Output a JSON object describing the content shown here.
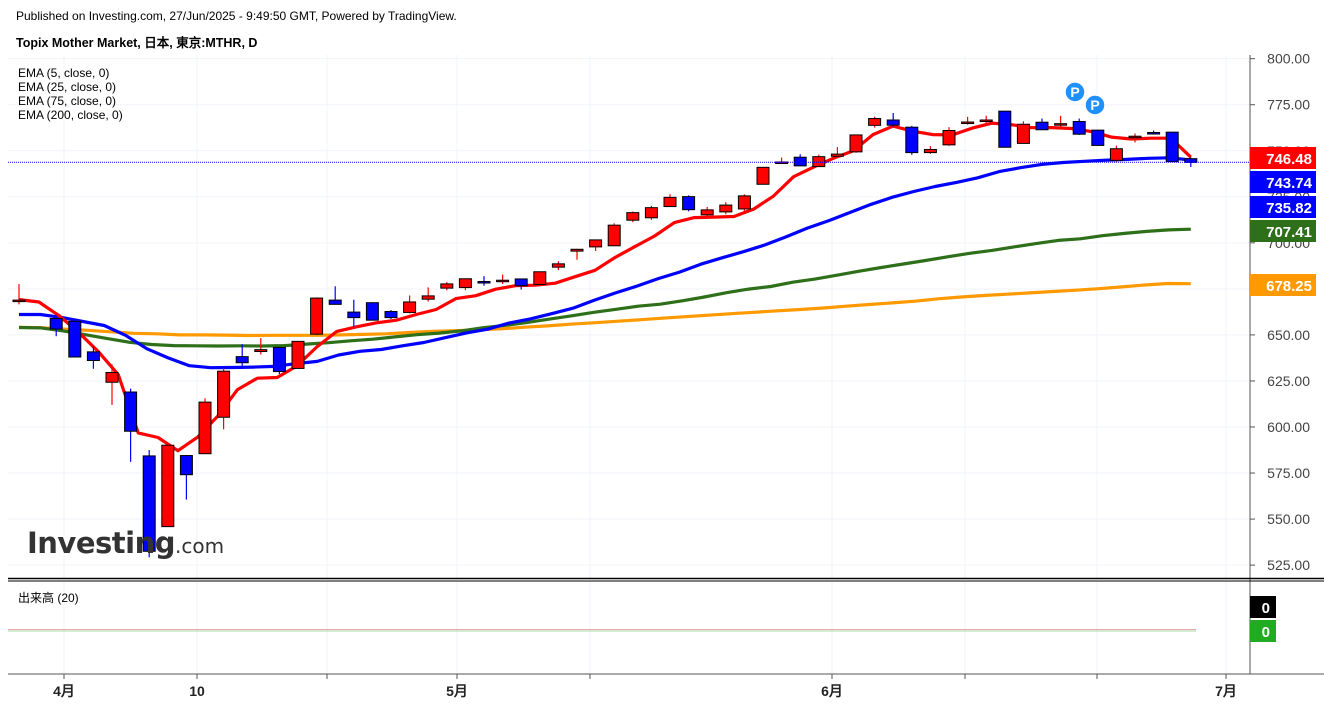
{
  "header": {
    "published": "Published on Investing.com, 27/Jun/2025 - 9:49:50 GMT, Powered by TradingView.",
    "title": "Topix Mother Market, 日本, 東京:MTHR, D"
  },
  "logo": {
    "main": "Investing",
    "suffix": ".com"
  },
  "volume_label": "出来高 (20)",
  "colors": {
    "up": "#ff0000",
    "down": "#0000ff",
    "ema5": "#ff0000",
    "ema25": "#0000ff",
    "ema75": "#2e6f1a",
    "ema200": "#ff9900",
    "price_line": "#0000ff"
  },
  "chart_data": {
    "type": "candlestick",
    "x_tick_labels": [
      "4月",
      "10",
      "5月",
      "6月",
      "7月"
    ],
    "y_ticks": [
      "800.00",
      "775.00",
      "750.00",
      "725.00",
      "700.00",
      "675.00",
      "650.00",
      "625.00",
      "600.00",
      "575.00",
      "550.00",
      "525.00"
    ],
    "ylim": [
      518,
      802
    ],
    "legend": [
      "EMA (5, close, 0)",
      "EMA (25, close, 0)",
      "EMA (75, close, 0)",
      "EMA (200, close, 0)"
    ],
    "price_labels": [
      {
        "text": "746.48",
        "value": 746.48,
        "color": "#ff0000",
        "text_color": "#ffffff"
      },
      {
        "text": "743.74",
        "value": 743.74,
        "color": "#0000ff",
        "text_color": "#ffffff"
      },
      {
        "text": "735.82",
        "value": 735.82,
        "color": "#0000ff",
        "text_color": "#ffffff"
      },
      {
        "text": "707.41",
        "value": 707.41,
        "color": "#2e6f1a",
        "text_color": "#ffffff"
      },
      {
        "text": "678.25",
        "value": 678.25,
        "color": "#ff9900",
        "text_color": "#ffffff"
      }
    ],
    "last_price": 743.74,
    "candles": [
      {
        "d": 0,
        "o": 668.9,
        "h": 677.6,
        "l": 666.6,
        "c": 668.9
      },
      {
        "d": 2,
        "o": 658.9,
        "h": 660.6,
        "l": 649.3,
        "c": 653.2
      },
      {
        "d": 3,
        "o": 657.4,
        "h": 657.9,
        "l": 638.0,
        "c": 638.0
      },
      {
        "d": 4,
        "o": 640.8,
        "h": 643.6,
        "l": 631.6,
        "c": 636.1
      },
      {
        "d": 5,
        "o": 624.3,
        "h": 634.0,
        "l": 612.0,
        "c": 629.6
      },
      {
        "d": 6,
        "o": 619.0,
        "h": 620.8,
        "l": 581.1,
        "c": 597.7
      },
      {
        "d": 7,
        "o": 584.3,
        "h": 587.5,
        "l": 529.2,
        "c": 532.5
      },
      {
        "d": 8,
        "o": 545.9,
        "h": 591.3,
        "l": 545.9,
        "c": 590.1
      },
      {
        "d": 9,
        "o": 584.5,
        "h": 584.8,
        "l": 560.6,
        "c": 574.1
      },
      {
        "d": 10,
        "o": 585.5,
        "h": 615.6,
        "l": 585.5,
        "c": 613.5
      },
      {
        "d": 11,
        "o": 605.3,
        "h": 631.8,
        "l": 598.7,
        "c": 630.3
      },
      {
        "d": 12,
        "o": 638.2,
        "h": 645.0,
        "l": 631.5,
        "c": 634.9
      },
      {
        "d": 13,
        "o": 641.0,
        "h": 648.3,
        "l": 639.4,
        "c": 642.0
      },
      {
        "d": 14,
        "o": 643.2,
        "h": 643.3,
        "l": 628.7,
        "c": 630.1
      },
      {
        "d": 15,
        "o": 631.8,
        "h": 646.5,
        "l": 631.8,
        "c": 646.5
      },
      {
        "d": 16,
        "o": 650.4,
        "h": 670.4,
        "l": 649.9,
        "c": 670.0
      },
      {
        "d": 17,
        "o": 668.9,
        "h": 676.4,
        "l": 666.7,
        "c": 666.6
      },
      {
        "d": 18,
        "o": 662.4,
        "h": 669.1,
        "l": 654.4,
        "c": 659.4
      },
      {
        "d": 19,
        "o": 667.5,
        "h": 667.7,
        "l": 658.0,
        "c": 658.0
      },
      {
        "d": 20,
        "o": 662.7,
        "h": 663.5,
        "l": 658.6,
        "c": 659.4
      },
      {
        "d": 21,
        "o": 662.2,
        "h": 671.4,
        "l": 661.7,
        "c": 667.9
      },
      {
        "d": 22,
        "o": 669.4,
        "h": 675.8,
        "l": 668.1,
        "c": 671.2
      },
      {
        "d": 23,
        "o": 675.4,
        "h": 678.7,
        "l": 674.2,
        "c": 677.7
      },
      {
        "d": 24,
        "o": 675.7,
        "h": 680.5,
        "l": 674.3,
        "c": 680.5
      },
      {
        "d": 25,
        "o": 679.0,
        "h": 681.9,
        "l": 676.7,
        "c": 678.2
      },
      {
        "d": 26,
        "o": 679.2,
        "h": 682.7,
        "l": 677.7,
        "c": 679.7
      },
      {
        "d": 27,
        "o": 680.4,
        "h": 680.4,
        "l": 674.6,
        "c": 676.7
      },
      {
        "d": 28,
        "o": 677.4,
        "h": 684.3,
        "l": 677.4,
        "c": 684.3
      },
      {
        "d": 29,
        "o": 686.8,
        "h": 690.0,
        "l": 685.2,
        "c": 688.6
      },
      {
        "d": 30,
        "o": 695.5,
        "h": 696.7,
        "l": 690.8,
        "c": 696.5
      },
      {
        "d": 31,
        "o": 697.8,
        "h": 701.6,
        "l": 695.6,
        "c": 701.6
      },
      {
        "d": 32,
        "o": 698.4,
        "h": 710.6,
        "l": 698.4,
        "c": 709.6
      },
      {
        "d": 33,
        "o": 712.3,
        "h": 717.0,
        "l": 711.2,
        "c": 716.4
      },
      {
        "d": 34,
        "o": 713.6,
        "h": 720.1,
        "l": 712.5,
        "c": 719.1
      },
      {
        "d": 35,
        "o": 719.7,
        "h": 726.4,
        "l": 719.6,
        "c": 724.7
      },
      {
        "d": 36,
        "o": 725.1,
        "h": 725.8,
        "l": 717.1,
        "c": 718.0
      },
      {
        "d": 37,
        "o": 715.2,
        "h": 719.5,
        "l": 714.1,
        "c": 717.9
      },
      {
        "d": 38,
        "o": 716.8,
        "h": 722.1,
        "l": 715.5,
        "c": 720.5
      },
      {
        "d": 39,
        "o": 718.4,
        "h": 726.3,
        "l": 717.1,
        "c": 725.5
      },
      {
        "d": 40,
        "o": 731.8,
        "h": 741.0,
        "l": 731.8,
        "c": 741.0
      },
      {
        "d": 41,
        "o": 743.2,
        "h": 746.3,
        "l": 742.9,
        "c": 743.9
      },
      {
        "d": 42,
        "o": 746.5,
        "h": 748.1,
        "l": 741.8,
        "c": 741.8
      },
      {
        "d": 43,
        "o": 741.4,
        "h": 747.9,
        "l": 741.2,
        "c": 746.8
      },
      {
        "d": 44,
        "o": 747.0,
        "h": 752.0,
        "l": 746.9,
        "c": 748.2
      },
      {
        "d": 45,
        "o": 749.4,
        "h": 758.6,
        "l": 748.9,
        "c": 758.6
      },
      {
        "d": 46,
        "o": 763.8,
        "h": 768.5,
        "l": 762.6,
        "c": 767.5
      },
      {
        "d": 47,
        "o": 766.7,
        "h": 770.5,
        "l": 762.8,
        "c": 763.9
      },
      {
        "d": 48,
        "o": 762.8,
        "h": 763.5,
        "l": 747.8,
        "c": 749.0
      },
      {
        "d": 49,
        "o": 749.0,
        "h": 752.5,
        "l": 748.3,
        "c": 750.7
      },
      {
        "d": 50,
        "o": 753.2,
        "h": 762.8,
        "l": 752.7,
        "c": 761.0
      },
      {
        "d": 51,
        "o": 765.6,
        "h": 768.4,
        "l": 764.2,
        "c": 765.6
      },
      {
        "d": 52,
        "o": 766.4,
        "h": 769.0,
        "l": 763.9,
        "c": 766.7
      },
      {
        "d": 53,
        "o": 771.5,
        "h": 771.5,
        "l": 751.9,
        "c": 751.9
      },
      {
        "d": 54,
        "o": 754.0,
        "h": 766.0,
        "l": 754.0,
        "c": 764.4
      },
      {
        "d": 55,
        "o": 765.5,
        "h": 767.5,
        "l": 761.4,
        "c": 761.4
      },
      {
        "d": 56,
        "o": 764.4,
        "h": 769.0,
        "l": 762.5,
        "c": 764.7
      },
      {
        "d": 57,
        "o": 765.9,
        "h": 767.5,
        "l": 758.6,
        "c": 759.0
      },
      {
        "d": 58,
        "o": 761.2,
        "h": 761.2,
        "l": 752.9,
        "c": 752.9
      },
      {
        "d": 59,
        "o": 744.8,
        "h": 752.8,
        "l": 743.6,
        "c": 751.1
      },
      {
        "d": 60,
        "o": 757.7,
        "h": 759.4,
        "l": 754.5,
        "c": 757.9
      },
      {
        "d": 61,
        "o": 759.9,
        "h": 761.0,
        "l": 759.3,
        "c": 759.3
      },
      {
        "d": 62,
        "o": 760.1,
        "h": 760.1,
        "l": 744.1,
        "c": 744.1
      },
      {
        "d": 63,
        "o": 745.7,
        "h": 746.4,
        "l": 741.2,
        "c": 743.7
      }
    ],
    "ema5": [
      [
        0,
        669.2
      ],
      [
        1,
        667.9
      ],
      [
        2,
        660.6
      ],
      [
        3,
        651.4
      ],
      [
        4,
        640.9
      ],
      [
        5,
        628.4
      ],
      [
        6,
        596.8
      ],
      [
        7,
        594.3
      ],
      [
        8,
        587.1
      ],
      [
        9,
        594.5
      ],
      [
        10,
        605.8
      ],
      [
        11,
        620.3
      ],
      [
        12,
        626.5
      ],
      [
        13,
        626.9
      ],
      [
        14,
        633.3
      ],
      [
        15,
        643.5
      ],
      [
        16,
        651.9
      ],
      [
        17,
        654.4
      ],
      [
        18,
        656.6
      ],
      [
        19,
        658.0
      ],
      [
        20,
        661.1
      ],
      [
        21,
        663.8
      ],
      [
        22,
        669.7
      ],
      [
        23,
        671.3
      ],
      [
        24,
        674.8
      ],
      [
        25,
        676.7
      ],
      [
        26,
        677.0
      ],
      [
        27,
        678.1
      ],
      [
        28,
        681.6
      ],
      [
        29,
        685.1
      ],
      [
        30,
        692.0
      ],
      [
        31,
        697.9
      ],
      [
        32,
        703.7
      ],
      [
        33,
        711.0
      ],
      [
        34,
        713.7
      ],
      [
        35,
        714.0
      ],
      [
        36,
        714.3
      ],
      [
        37,
        718.4
      ],
      [
        38,
        725.5
      ],
      [
        39,
        735.9
      ],
      [
        40,
        741.1
      ],
      [
        41,
        745.9
      ],
      [
        42,
        749.9
      ],
      [
        43,
        758.8
      ],
      [
        44,
        763.4
      ],
      [
        45,
        760.6
      ],
      [
        46,
        758.8
      ],
      [
        47,
        758.6
      ],
      [
        48,
        762.3
      ],
      [
        49,
        765.0
      ],
      [
        50,
        764.1
      ],
      [
        51,
        762.5
      ],
      [
        52,
        762.6
      ],
      [
        53,
        762.1
      ],
      [
        54,
        760.4
      ],
      [
        55,
        757.4
      ],
      [
        56,
        756.4
      ],
      [
        57,
        756.8
      ],
      [
        58,
        756.8
      ],
      [
        59,
        746.5
      ]
    ],
    "ema25": [
      [
        0,
        661.1
      ],
      [
        1,
        661.1
      ],
      [
        2,
        659.5
      ],
      [
        3,
        657.3
      ],
      [
        4,
        655.1
      ],
      [
        5,
        649.8
      ],
      [
        6,
        642.5
      ],
      [
        7,
        637.5
      ],
      [
        8,
        633.3
      ],
      [
        9,
        632.2
      ],
      [
        10,
        632.3
      ],
      [
        11,
        632.5
      ],
      [
        12,
        632.9
      ],
      [
        13,
        634.4
      ],
      [
        14,
        635.6
      ],
      [
        15,
        639.1
      ],
      [
        16,
        641.1
      ],
      [
        17,
        642.1
      ],
      [
        18,
        644.1
      ],
      [
        19,
        645.9
      ],
      [
        20,
        648.5
      ],
      [
        21,
        651.1
      ],
      [
        22,
        653.1
      ],
      [
        23,
        656.4
      ],
      [
        24,
        658.7
      ],
      [
        25,
        661.5
      ],
      [
        26,
        664.5
      ],
      [
        27,
        668.8
      ],
      [
        28,
        672.8
      ],
      [
        29,
        676.5
      ],
      [
        30,
        680.6
      ],
      [
        31,
        684.1
      ],
      [
        32,
        688.4
      ],
      [
        33,
        691.9
      ],
      [
        34,
        695.2
      ],
      [
        35,
        698.8
      ],
      [
        36,
        703.2
      ],
      [
        37,
        708.0
      ],
      [
        38,
        712.0
      ],
      [
        39,
        716.5
      ],
      [
        40,
        720.9
      ],
      [
        41,
        724.8
      ],
      [
        42,
        727.9
      ],
      [
        43,
        730.6
      ],
      [
        44,
        732.8
      ],
      [
        45,
        735.3
      ],
      [
        46,
        738.7
      ],
      [
        47,
        740.8
      ],
      [
        48,
        742.6
      ],
      [
        49,
        743.6
      ],
      [
        50,
        744.3
      ],
      [
        51,
        744.9
      ],
      [
        52,
        745.3
      ],
      [
        53,
        745.9
      ],
      [
        54,
        746.2
      ],
      [
        55,
        745.0
      ]
    ],
    "ema75": [
      [
        0,
        654.0
      ],
      [
        1,
        653.8
      ],
      [
        2,
        652.2
      ],
      [
        3,
        650.1
      ],
      [
        4,
        648.0
      ],
      [
        5,
        646.0
      ],
      [
        6,
        644.8
      ],
      [
        7,
        644.2
      ],
      [
        8,
        644.1
      ],
      [
        9,
        644.0
      ],
      [
        10,
        644.1
      ],
      [
        11,
        644.0
      ],
      [
        12,
        644.2
      ],
      [
        13,
        645.0
      ],
      [
        14,
        645.8
      ],
      [
        15,
        646.8
      ],
      [
        16,
        647.7
      ],
      [
        17,
        648.9
      ],
      [
        18,
        650.1
      ],
      [
        19,
        651.0
      ],
      [
        20,
        652.2
      ],
      [
        21,
        653.9
      ],
      [
        22,
        655.2
      ],
      [
        23,
        656.8
      ],
      [
        24,
        658.6
      ],
      [
        25,
        660.4
      ],
      [
        26,
        662.3
      ],
      [
        27,
        663.9
      ],
      [
        28,
        665.6
      ],
      [
        29,
        666.7
      ],
      [
        30,
        668.5
      ],
      [
        31,
        670.6
      ],
      [
        32,
        672.9
      ],
      [
        33,
        674.9
      ],
      [
        34,
        676.3
      ],
      [
        35,
        678.6
      ],
      [
        36,
        680.3
      ],
      [
        37,
        682.4
      ],
      [
        38,
        684.6
      ],
      [
        39,
        686.6
      ],
      [
        40,
        688.5
      ],
      [
        41,
        690.4
      ],
      [
        42,
        692.4
      ],
      [
        43,
        694.3
      ],
      [
        44,
        695.9
      ],
      [
        45,
        697.8
      ],
      [
        46,
        699.6
      ],
      [
        47,
        701.3
      ],
      [
        48,
        702.2
      ],
      [
        49,
        703.9
      ],
      [
        50,
        705.1
      ],
      [
        51,
        706.2
      ],
      [
        52,
        707.0
      ],
      [
        53,
        707.4
      ]
    ],
    "ema200": [
      [
        0,
        654.1
      ],
      [
        1,
        653.9
      ],
      [
        2,
        653.1
      ],
      [
        3,
        652.5
      ],
      [
        4,
        651.7
      ],
      [
        5,
        650.9
      ],
      [
        6,
        650.6
      ],
      [
        7,
        650.0
      ],
      [
        8,
        650.0
      ],
      [
        9,
        649.9
      ],
      [
        10,
        649.7
      ],
      [
        11,
        649.8
      ],
      [
        12,
        649.8
      ],
      [
        13,
        649.8
      ],
      [
        14,
        650.0
      ],
      [
        15,
        650.3
      ],
      [
        16,
        650.6
      ],
      [
        17,
        651.3
      ],
      [
        18,
        651.9
      ],
      [
        19,
        652.3
      ],
      [
        20,
        652.8
      ],
      [
        21,
        653.3
      ],
      [
        22,
        654.2
      ],
      [
        23,
        654.9
      ],
      [
        24,
        655.8
      ],
      [
        25,
        656.6
      ],
      [
        26,
        657.4
      ],
      [
        27,
        658.2
      ],
      [
        28,
        659.1
      ],
      [
        29,
        659.9
      ],
      [
        30,
        660.7
      ],
      [
        31,
        661.5
      ],
      [
        32,
        662.3
      ],
      [
        33,
        663.1
      ],
      [
        34,
        663.8
      ],
      [
        35,
        664.6
      ],
      [
        36,
        665.6
      ],
      [
        37,
        666.5
      ],
      [
        38,
        667.4
      ],
      [
        39,
        668.3
      ],
      [
        40,
        669.6
      ],
      [
        41,
        670.6
      ],
      [
        42,
        671.4
      ],
      [
        43,
        672.1
      ],
      [
        44,
        672.8
      ],
      [
        45,
        673.6
      ],
      [
        46,
        674.3
      ],
      [
        47,
        675.1
      ],
      [
        48,
        676.1
      ],
      [
        49,
        677.1
      ],
      [
        50,
        677.9
      ],
      [
        51,
        677.8
      ]
    ],
    "dividend_markers": [
      {
        "d": 56,
        "label": "P"
      },
      {
        "d": 57,
        "label": "P"
      }
    ],
    "volume": {
      "label": "出来高 (20)",
      "values_shown": [
        "0",
        "0"
      ]
    }
  }
}
